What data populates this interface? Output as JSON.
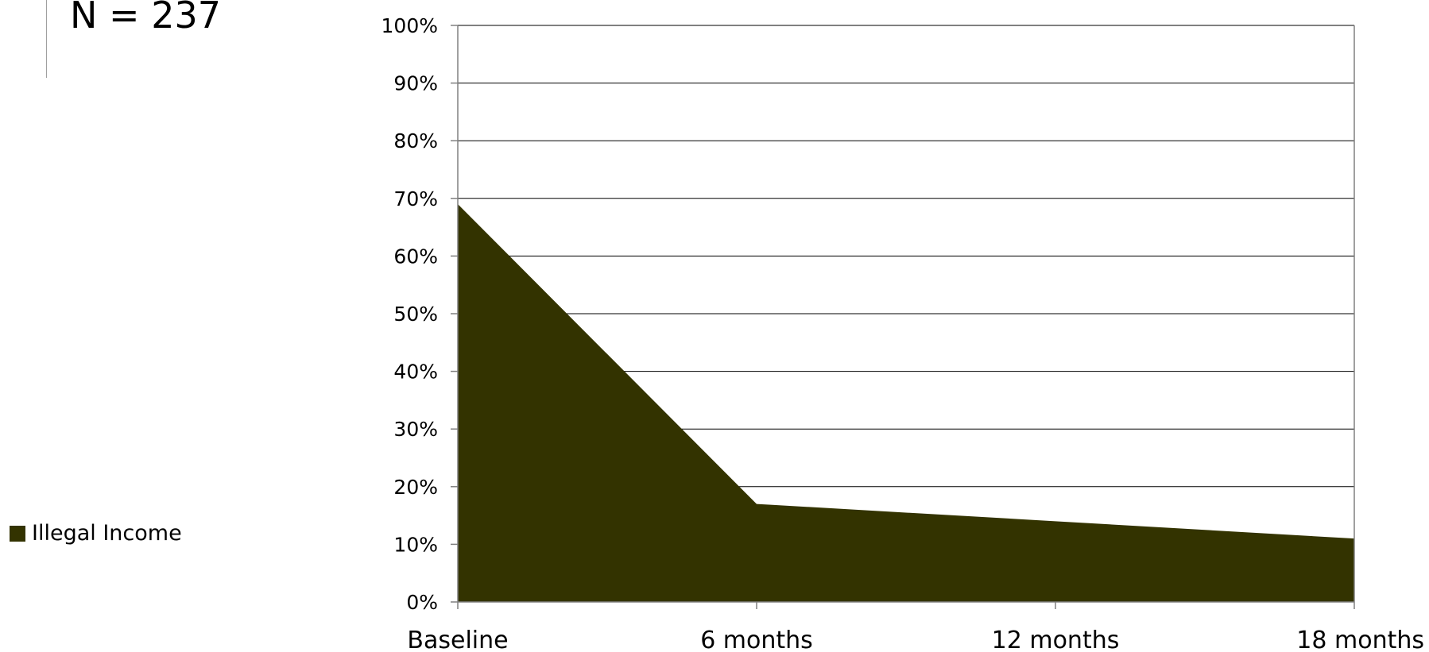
{
  "header": {
    "sample_size": "N = 237"
  },
  "chart_data": {
    "type": "area",
    "categories": [
      "Baseline",
      "6 months",
      "12 months",
      "18 months"
    ],
    "series": [
      {
        "name": "Illegal Income",
        "values": [
          69,
          17,
          14,
          11
        ],
        "color": "#333300"
      }
    ],
    "y_ticks": [
      "0%",
      "10%",
      "20%",
      "30%",
      "40%",
      "50%",
      "60%",
      "70%",
      "80%",
      "90%",
      "100%"
    ],
    "ylim": [
      0,
      100
    ],
    "grid": true,
    "legend_position": "left"
  }
}
